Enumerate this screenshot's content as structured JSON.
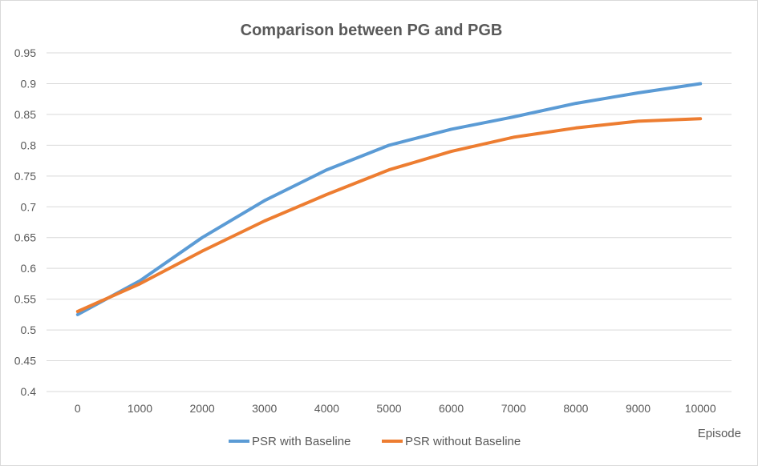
{
  "chart_data": {
    "type": "line",
    "title": "Comparison between PG and PGB",
    "xlabel": "Episode",
    "ylabel": "",
    "x": [
      0,
      1000,
      2000,
      3000,
      4000,
      5000,
      6000,
      7000,
      8000,
      9000,
      10000
    ],
    "x_tick_labels": [
      "0",
      "1000",
      "2000",
      "3000",
      "4000",
      "5000",
      "6000",
      "7000",
      "8000",
      "9000",
      "10000"
    ],
    "ylim": [
      0.4,
      0.95
    ],
    "y_ticks": [
      0.4,
      0.45,
      0.5,
      0.55,
      0.6,
      0.65,
      0.7,
      0.75,
      0.8,
      0.85,
      0.9,
      0.95
    ],
    "y_tick_labels": [
      "0.4",
      "0.45",
      "0.5",
      "0.55",
      "0.6",
      "0.65",
      "0.7",
      "0.75",
      "0.8",
      "0.85",
      "0.9",
      "0.95"
    ],
    "grid": true,
    "legend_position": "bottom",
    "series": [
      {
        "name": "PSR with Baseline",
        "color": "#5b9bd5",
        "values": [
          0.525,
          0.58,
          0.65,
          0.71,
          0.76,
          0.8,
          0.826,
          0.846,
          0.868,
          0.885,
          0.9
        ]
      },
      {
        "name": "PSR without Baseline",
        "color": "#ed7d31",
        "values": [
          0.53,
          0.575,
          0.628,
          0.677,
          0.72,
          0.76,
          0.79,
          0.813,
          0.828,
          0.839,
          0.843
        ]
      }
    ]
  }
}
